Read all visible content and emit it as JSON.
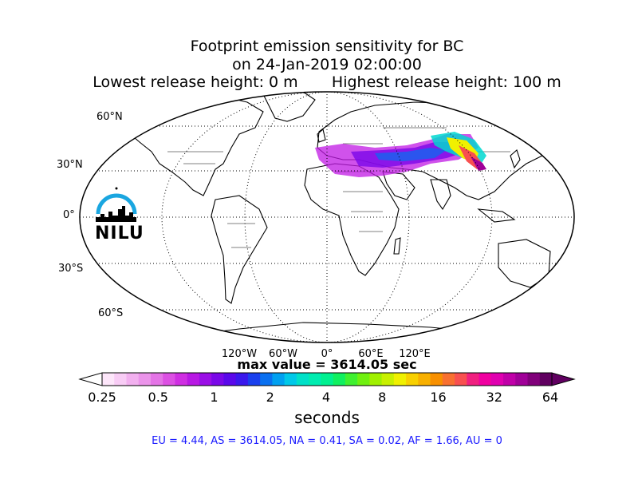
{
  "title": {
    "line1": "Footprint emission sensitivity for BC",
    "line2": "on 24-Jan-2019 02:00:00",
    "line3": "Lowest release height: 0 m       Highest release height: 100 m"
  },
  "map": {
    "lat_labels": [
      "60°N",
      "30°N",
      "0°",
      "30°S",
      "60°S"
    ],
    "lon_labels": [
      "120°W",
      "60°W",
      "0°",
      "60°E",
      "120°E"
    ],
    "logo_text": "NILU"
  },
  "max_value": "max value = 3614.05 sec",
  "colorbar": {
    "tick_labels": [
      "0.25",
      "0.5",
      "1",
      "2",
      "4",
      "8",
      "16",
      "32",
      "64"
    ],
    "unit_label": "seconds",
    "colors": [
      "#fde6fa",
      "#f8ccf5",
      "#f2b0ef",
      "#eb94ea",
      "#e474e6",
      "#dc50e3",
      "#cf2ee2",
      "#b818e4",
      "#9a0ee6",
      "#7a08e8",
      "#5a08ea",
      "#3a18ec",
      "#1a40ee",
      "#0a70f0",
      "#00a0f0",
      "#00c8e8",
      "#00e0c8",
      "#00ecb0",
      "#00f090",
      "#10f060",
      "#40f030",
      "#70f010",
      "#a0f000",
      "#c8f000",
      "#f0f000",
      "#f8d000",
      "#f8b000",
      "#f89000",
      "#f87030",
      "#f85050",
      "#f02080",
      "#f000a0",
      "#e000b0",
      "#c000a8",
      "#a00098",
      "#80007a",
      "#600060"
    ]
  },
  "stats": "EU = 4.44,  AS = 3614.05,  NA = 0.41,  SA = 0.02,  AF = 1.66,  AU = 0"
}
